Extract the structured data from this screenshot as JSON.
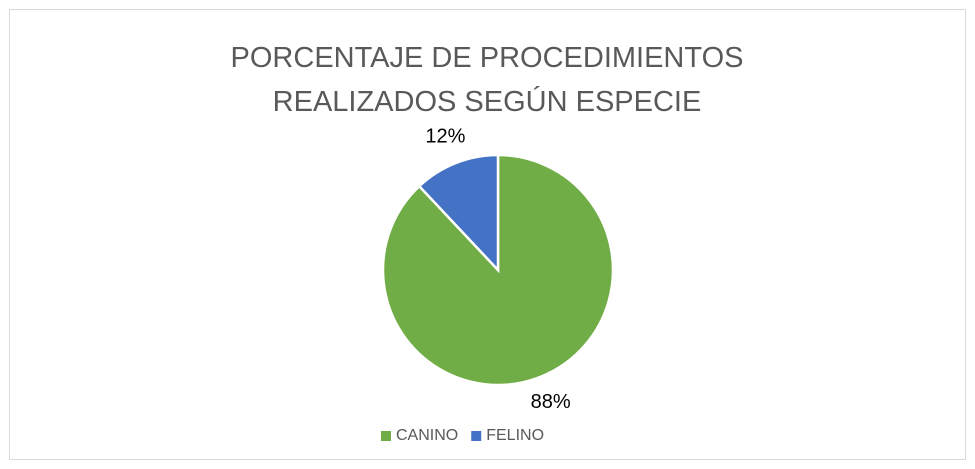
{
  "chart_data": {
    "type": "pie",
    "title": "PORCENTAJE DE PROCEDIMIENTOS REALIZADOS SEGÚN ESPECIE",
    "categories": [
      "CANINO",
      "FELINO"
    ],
    "values": [
      88,
      12
    ],
    "value_labels": [
      "88%",
      "12%"
    ],
    "colors": [
      "#70ad47",
      "#4472c4"
    ],
    "legend": "bottom"
  }
}
